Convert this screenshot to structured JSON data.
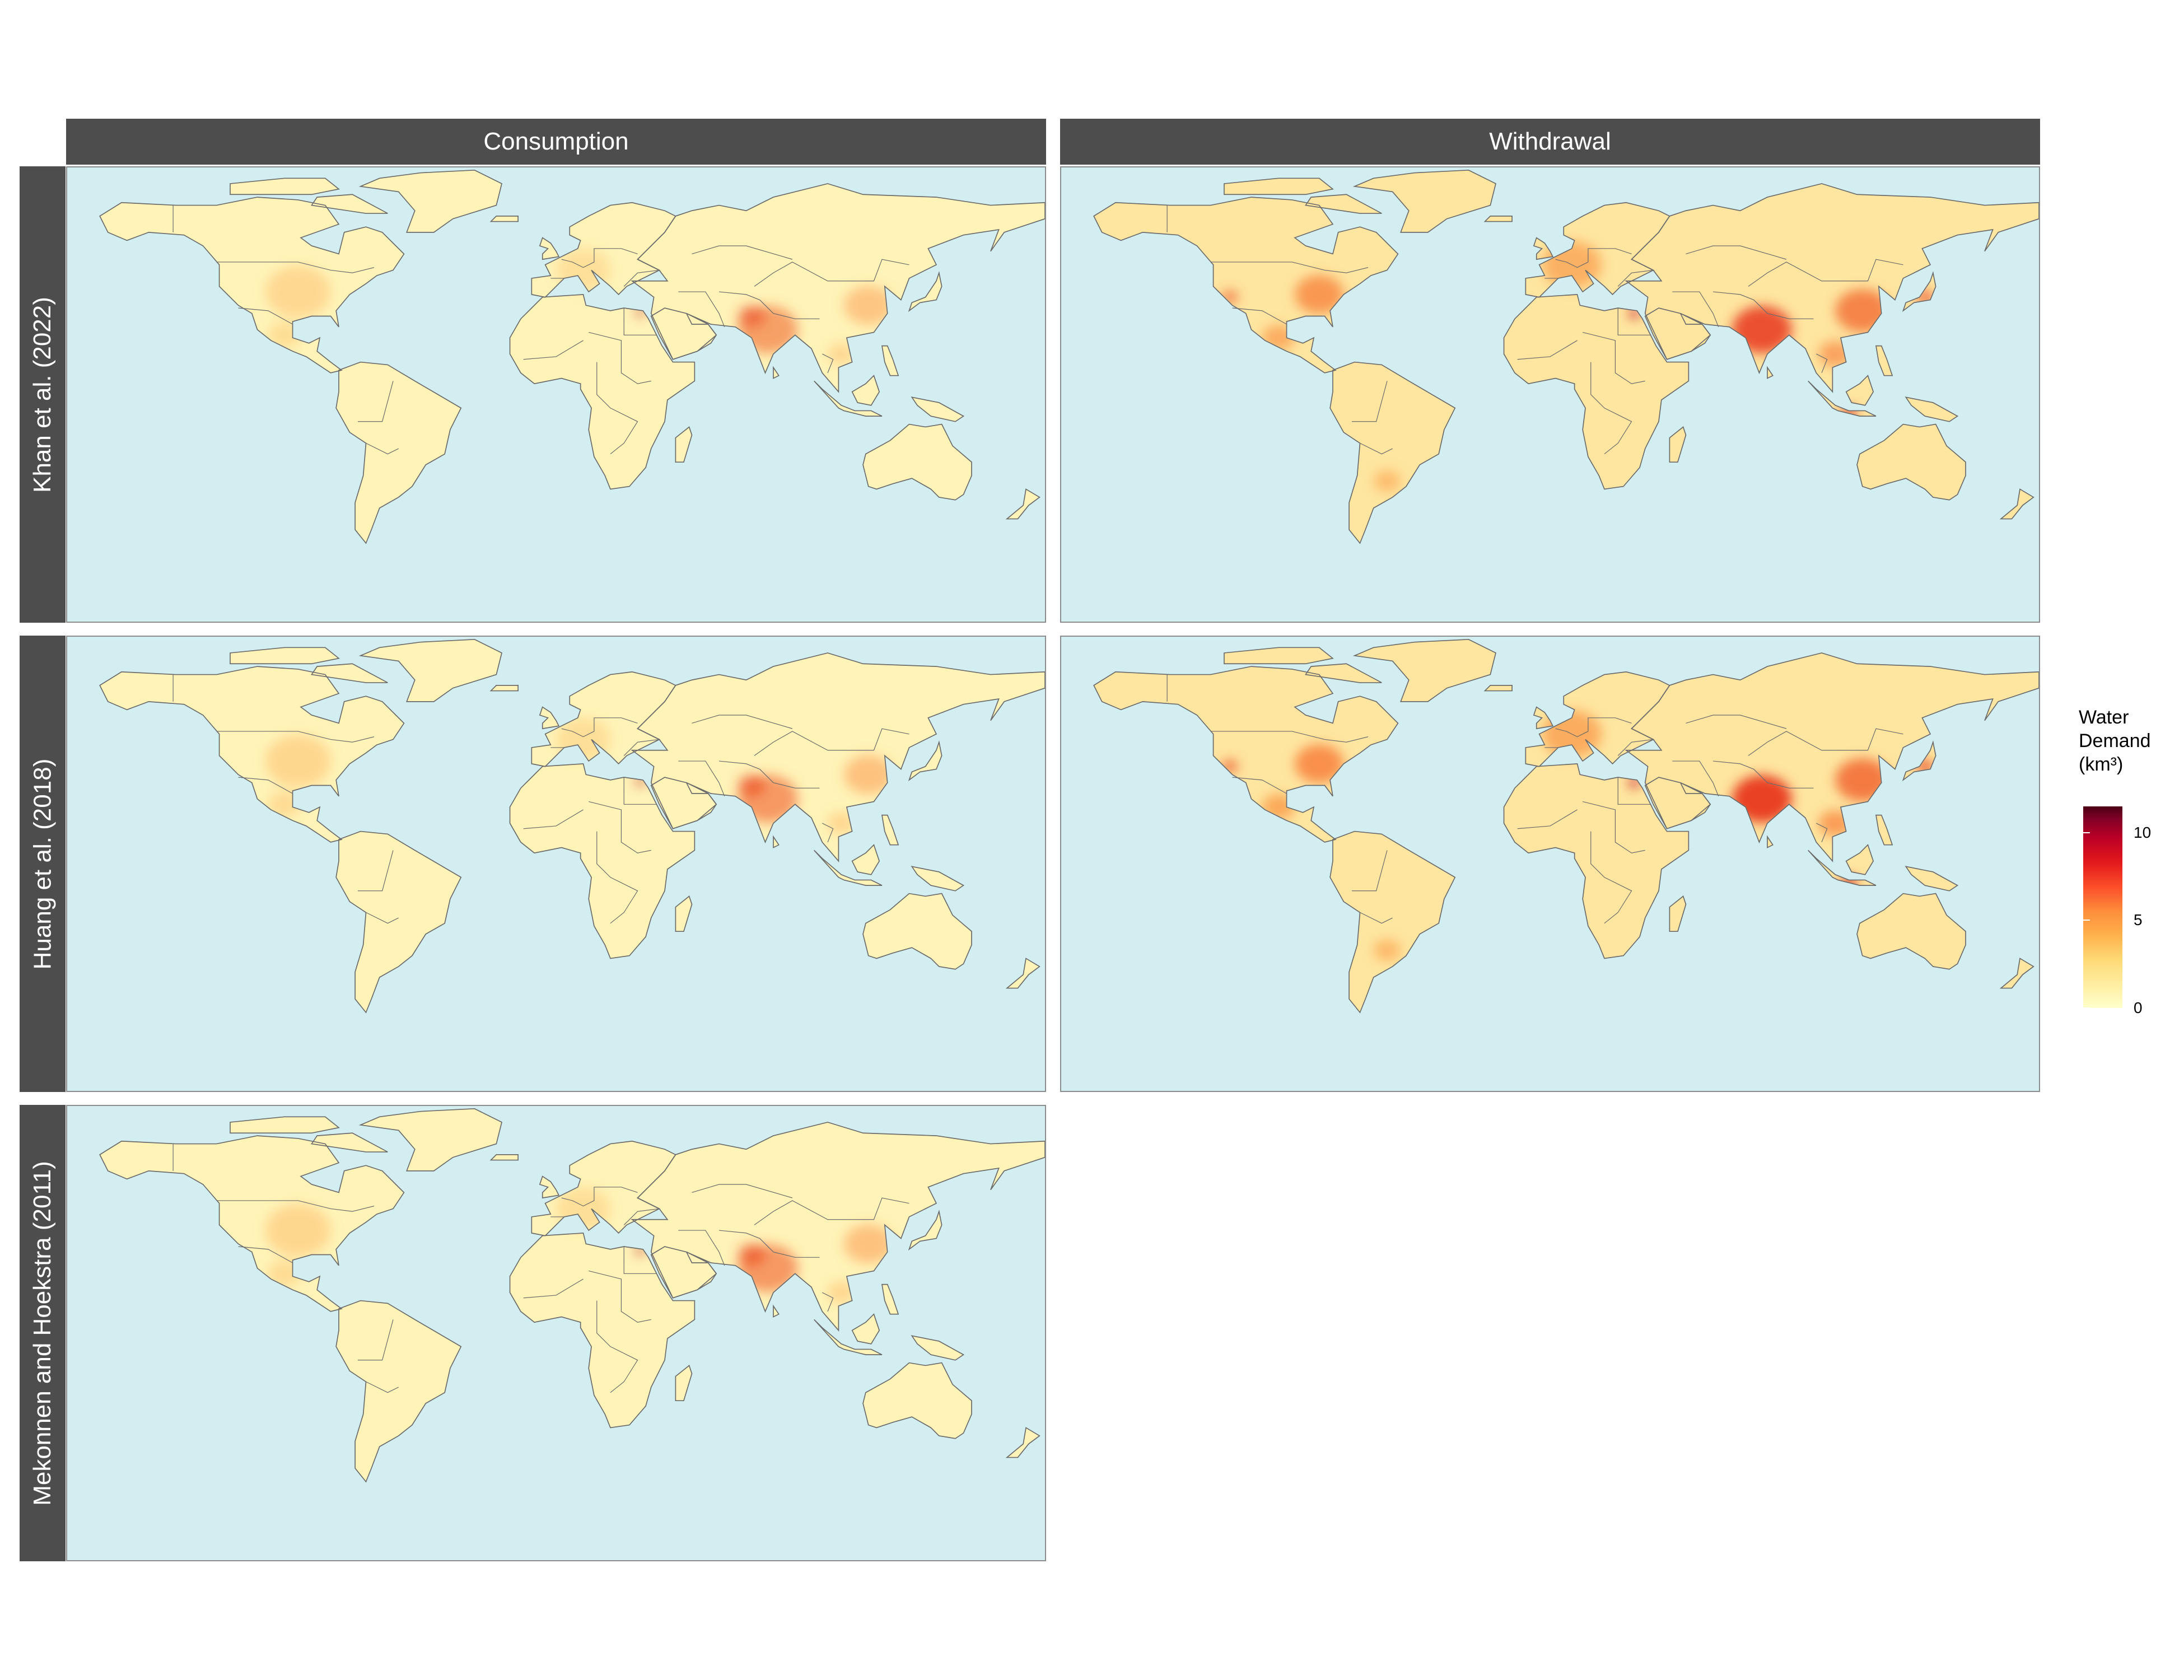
{
  "facets": {
    "columns": [
      "Consumption",
      "Withdrawal"
    ],
    "rows": [
      "Khan et al. (2022)",
      "Huang et al. (2018)",
      "Mekonnen and Hoekstra (2011)"
    ]
  },
  "panels": [
    {
      "row": 0,
      "col": 0,
      "intensity": 0.55
    },
    {
      "row": 0,
      "col": 1,
      "intensity": 0.85
    },
    {
      "row": 1,
      "col": 0,
      "intensity": 0.6
    },
    {
      "row": 1,
      "col": 1,
      "intensity": 0.95
    },
    {
      "row": 2,
      "col": 0,
      "intensity": 0.6
    }
  ],
  "legend": {
    "title_lines": [
      "Water",
      "Demand",
      "(km³)"
    ],
    "ticks": [
      {
        "label": "10",
        "value": 10
      },
      {
        "label": "5",
        "value": 5
      },
      {
        "label": "0",
        "value": 0
      }
    ],
    "max": 11.5,
    "colors": [
      "#ffffcc",
      "#fed976",
      "#fd8d3c",
      "#e31a1c",
      "#800026"
    ]
  },
  "colors": {
    "ocean": "#d3eef0",
    "land": "#fff3b8",
    "border": "#6b6b6b",
    "strip": "#4d4d4d"
  },
  "hotspots": {
    "Consumption": [
      "India",
      "Pakistan",
      "Nile Delta",
      "Eastern China",
      "Central USA"
    ],
    "Withdrawal": [
      "India",
      "Eastern China",
      "Eastern USA",
      "Europe",
      "Java",
      "Japan"
    ]
  }
}
